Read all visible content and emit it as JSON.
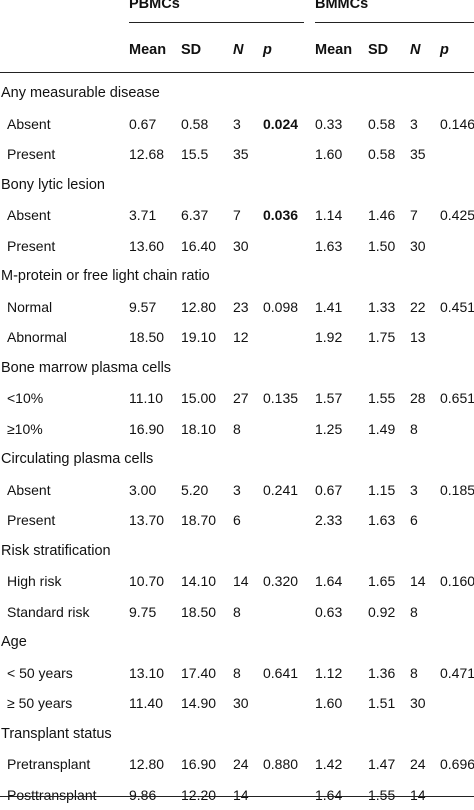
{
  "header": {
    "groups": [
      "PBMCs",
      "BMMCs"
    ],
    "columns": [
      "Mean",
      "SD",
      "N",
      "p",
      "Mean",
      "SD",
      "N",
      "p"
    ]
  },
  "sections": [
    {
      "title": "Any measurable disease",
      "rows": [
        {
          "label": "Absent",
          "values": [
            "0.67",
            "0.58",
            "3",
            "0.024",
            "0.33",
            "0.58",
            "3",
            "0.146"
          ],
          "bold_p1": true
        },
        {
          "label": "Present",
          "values": [
            "12.68",
            "15.5",
            "35",
            "",
            "1.60",
            "0.58",
            "35",
            ""
          ]
        }
      ]
    },
    {
      "title": "Bony lytic lesion",
      "rows": [
        {
          "label": "Absent",
          "values": [
            "3.71",
            "6.37",
            "7",
            "0.036",
            "1.14",
            "1.46",
            "7",
            "0.425"
          ],
          "bold_p1": true
        },
        {
          "label": "Present",
          "values": [
            "13.60",
            "16.40",
            "30",
            "",
            "1.63",
            "1.50",
            "30",
            ""
          ]
        }
      ]
    },
    {
      "title": "M-protein or free light chain ratio",
      "rows": [
        {
          "label": "Normal",
          "values": [
            "9.57",
            "12.80",
            "23",
            "0.098",
            "1.41",
            "1.33",
            "22",
            "0.451"
          ]
        },
        {
          "label": "Abnormal",
          "values": [
            "18.50",
            "19.10",
            "12",
            "",
            "1.92",
            "1.75",
            "13",
            ""
          ]
        }
      ]
    },
    {
      "title": "Bone marrow plasma cells",
      "rows": [
        {
          "label": "<10%",
          "values": [
            "11.10",
            "15.00",
            "27",
            "0.135",
            "1.57",
            "1.55",
            "28",
            "0.651"
          ]
        },
        {
          "label": "≥10%",
          "values": [
            "16.90",
            "18.10",
            "8",
            "",
            "1.25",
            "1.49",
            "8",
            ""
          ]
        }
      ]
    },
    {
      "title": "Circulating plasma cells",
      "rows": [
        {
          "label": "Absent",
          "values": [
            "3.00",
            "5.20",
            "3",
            "0.241",
            "0.67",
            "1.15",
            "3",
            "0.185"
          ]
        },
        {
          "label": "Present",
          "values": [
            "13.70",
            "18.70",
            "6",
            "",
            "2.33",
            "1.63",
            "6",
            ""
          ]
        }
      ]
    },
    {
      "title": "Risk stratification",
      "rows": [
        {
          "label": "High risk",
          "values": [
            "10.70",
            "14.10",
            "14",
            "0.320",
            "1.64",
            "1.65",
            "14",
            "0.160"
          ]
        },
        {
          "label": "Standard risk",
          "values": [
            "9.75",
            "18.50",
            "8",
            "",
            "0.63",
            "0.92",
            "8",
            ""
          ]
        }
      ]
    },
    {
      "title": "Age",
      "rows": [
        {
          "label": "< 50 years",
          "values": [
            "13.10",
            "17.40",
            "8",
            "0.641",
            "1.12",
            "1.36",
            "8",
            "0.471"
          ]
        },
        {
          "label": "≥ 50 years",
          "values": [
            "11.40",
            "14.90",
            "30",
            "",
            "1.60",
            "1.51",
            "30",
            ""
          ]
        }
      ]
    },
    {
      "title": "Transplant status",
      "rows": [
        {
          "label": "Pretransplant",
          "values": [
            "12.80",
            "16.90",
            "24",
            "0.880",
            "1.42",
            "1.47",
            "24",
            "0.696"
          ]
        },
        {
          "label": "Posttransplant",
          "values": [
            "9.86",
            "12.20",
            "14",
            "",
            "1.64",
            "1.55",
            "14",
            ""
          ]
        }
      ]
    }
  ]
}
